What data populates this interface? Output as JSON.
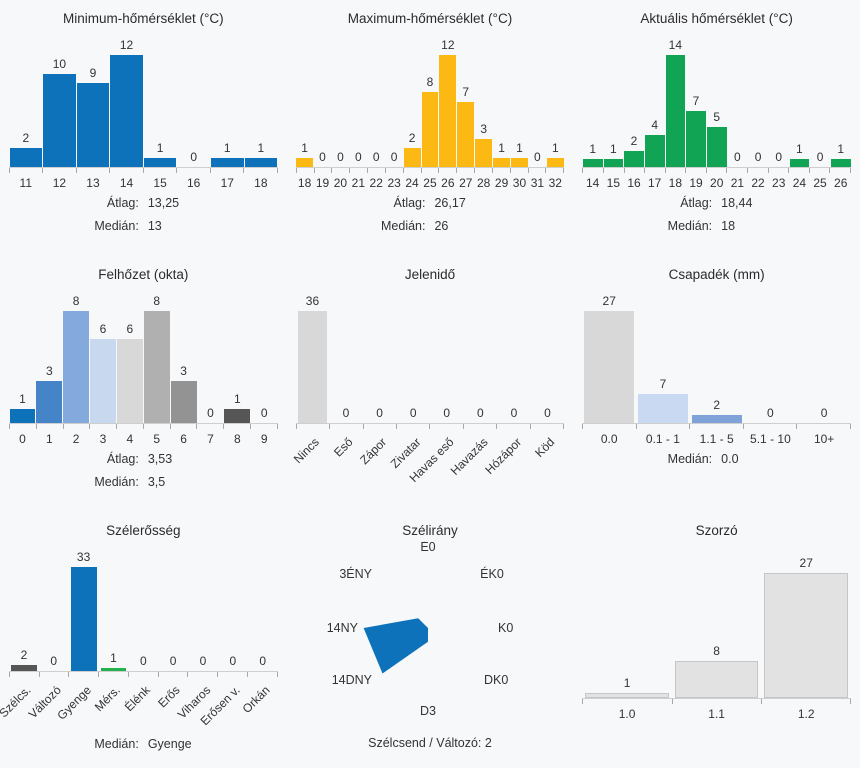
{
  "page": {
    "background": "#f7f8fa",
    "text_color": "#333333",
    "title_color": "#2b2b2b"
  },
  "chart_data": [
    {
      "id": "min-temp",
      "type": "bar",
      "title": "Minimum-hőmérséklet (°C)",
      "categories": [
        "11",
        "12",
        "13",
        "14",
        "15",
        "16",
        "17",
        "18"
      ],
      "values": [
        2,
        10,
        9,
        12,
        1,
        0,
        1,
        1
      ],
      "bar_color": "#0d72b9",
      "grid": false,
      "legend": "none",
      "stats": [
        {
          "label": "Átlag:",
          "value": "13,25"
        },
        {
          "label": "Medián:",
          "value": "13"
        }
      ]
    },
    {
      "id": "max-temp",
      "type": "bar",
      "title": "Maximum-hőmérséklet (°C)",
      "categories": [
        "18",
        "19",
        "20",
        "21",
        "22",
        "23",
        "24",
        "25",
        "26",
        "27",
        "28",
        "29",
        "30",
        "31",
        "32"
      ],
      "values": [
        1,
        0,
        0,
        0,
        0,
        0,
        2,
        8,
        12,
        7,
        3,
        1,
        1,
        0,
        1
      ],
      "bar_color": "#fcb813",
      "grid": false,
      "legend": "none",
      "stats": [
        {
          "label": "Átlag:",
          "value": "26,17"
        },
        {
          "label": "Medián:",
          "value": "26"
        }
      ]
    },
    {
      "id": "current-temp",
      "type": "bar",
      "title": "Aktuális hőmérséklet (°C)",
      "categories": [
        "14",
        "15",
        "16",
        "17",
        "18",
        "19",
        "20",
        "21",
        "22",
        "23",
        "24",
        "25",
        "26"
      ],
      "values": [
        1,
        1,
        2,
        4,
        14,
        7,
        5,
        0,
        0,
        0,
        1,
        0,
        1
      ],
      "bar_color": "#12a455",
      "grid": false,
      "legend": "none",
      "stats": [
        {
          "label": "Átlag:",
          "value": "18,44"
        },
        {
          "label": "Medián:",
          "value": "18"
        }
      ]
    },
    {
      "id": "cloud-cover",
      "type": "bar",
      "title": "Felhőzet (okta)",
      "categories": [
        "0",
        "1",
        "2",
        "3",
        "4",
        "5",
        "6",
        "7",
        "8",
        "9"
      ],
      "values": [
        1,
        3,
        8,
        6,
        6,
        8,
        3,
        0,
        1,
        0
      ],
      "bar_colors": [
        "#0d72b9",
        "#4584c6",
        "#84a9dc",
        "#c8d8ef",
        "#d8d8d8",
        "#b0b0b0",
        "#939393",
        "#939393",
        "#565656",
        "#d8d8d8"
      ],
      "grid": false,
      "legend": "none",
      "stats": [
        {
          "label": "Átlag:",
          "value": "3,53"
        },
        {
          "label": "Medián:",
          "value": "3,5"
        }
      ]
    },
    {
      "id": "present-weather",
      "type": "bar",
      "title": "Jelenidő",
      "categories": [
        "Nincs",
        "Eső",
        "Zápor",
        "Zivatar",
        "Havas eső",
        "Havazás",
        "Hózápor",
        "Köd"
      ],
      "values": [
        36,
        0,
        0,
        0,
        0,
        0,
        0,
        0
      ],
      "bar_color": "#d8d8d8",
      "rotated_labels": true,
      "grid": false,
      "legend": "none",
      "stats": []
    },
    {
      "id": "precipitation",
      "type": "bar",
      "title": "Csapadék (mm)",
      "categories": [
        "0.0",
        "0.1 - 1",
        "1.1 - 5",
        "5.1 - 10",
        "10+"
      ],
      "values": [
        27,
        7,
        2,
        0,
        0
      ],
      "bar_colors": [
        "#d8d8d8",
        "#c9d9f1",
        "#7fa3d8",
        "#d8d8d8",
        "#d8d8d8"
      ],
      "grid": false,
      "legend": "none",
      "stats": [
        {
          "label": "Medián:",
          "value": "0.0"
        }
      ]
    },
    {
      "id": "wind-strength",
      "type": "bar",
      "title": "Szélerősség",
      "categories": [
        "Szélcs.",
        "Változó",
        "Gyenge",
        "Mérs.",
        "Élénk",
        "Erős",
        "Viharos",
        "Erősen v.",
        "Orkán"
      ],
      "values": [
        2,
        0,
        33,
        1,
        0,
        0,
        0,
        0,
        0
      ],
      "bar_colors": [
        "#565656",
        "#565656",
        "#0d72b9",
        "#23b14f",
        "#d8d8d8",
        "#d8d8d8",
        "#d8d8d8",
        "#d8d8d8",
        "#d8d8d8"
      ],
      "rotated_labels": true,
      "grid": false,
      "legend": "none",
      "stats": [
        {
          "label": "Medián:",
          "value": "Gyenge"
        }
      ]
    },
    {
      "id": "wind-direction",
      "type": "rose",
      "title": "Szélirány",
      "directions": [
        {
          "dir": "É",
          "count": 0,
          "label": "É0"
        },
        {
          "dir": "ÉK",
          "count": 0,
          "label": "ÉK0"
        },
        {
          "dir": "K",
          "count": 0,
          "label": "K0"
        },
        {
          "dir": "DK",
          "count": 0,
          "label": "DK0"
        },
        {
          "dir": "D",
          "count": 3,
          "label": "D3"
        },
        {
          "dir": "DNY",
          "count": 14,
          "label": "14DNY"
        },
        {
          "dir": "NY",
          "count": 14,
          "label": "14NY"
        },
        {
          "dir": "ÉNY",
          "count": 3,
          "label": "3ÉNY"
        }
      ],
      "fill_color": "#0d72b9",
      "footer": "Szélcsend / Változó: 2"
    },
    {
      "id": "multiplier",
      "type": "bar",
      "title": "Szorzó",
      "categories": [
        "1.0",
        "1.1",
        "1.2"
      ],
      "values": [
        1,
        8,
        27
      ],
      "bar_color": "#e2e2e2",
      "bar_border": "#c6c6c6",
      "grid": false,
      "legend": "none",
      "stats": []
    }
  ]
}
